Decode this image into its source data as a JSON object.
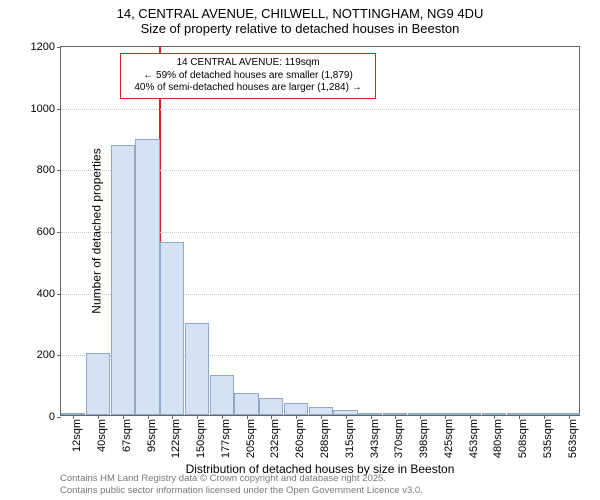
{
  "title": {
    "line1": "14, CENTRAL AVENUE, CHILWELL, NOTTINGHAM, NG9 4DU",
    "line2": "Size of property relative to detached houses in Beeston"
  },
  "chart": {
    "type": "histogram",
    "background_color": "#ffffff",
    "grid_color": "#c8c8c8",
    "axis_color": "#666666",
    "bar_fill": "#d6e2f3",
    "bar_border": "#8fa8cc",
    "ylim": [
      0,
      1200
    ],
    "yticks": [
      0,
      200,
      400,
      600,
      800,
      1000,
      1200
    ],
    "xticks": [
      "12sqm",
      "40sqm",
      "67sqm",
      "95sqm",
      "122sqm",
      "150sqm",
      "177sqm",
      "205sqm",
      "232sqm",
      "260sqm",
      "288sqm",
      "315sqm",
      "343sqm",
      "370sqm",
      "398sqm",
      "425sqm",
      "453sqm",
      "480sqm",
      "508sqm",
      "535sqm",
      "563sqm"
    ],
    "bars": [
      8,
      200,
      875,
      895,
      560,
      300,
      130,
      70,
      55,
      40,
      25,
      15,
      5,
      5,
      2,
      5,
      2,
      3,
      3,
      2,
      2
    ],
    "ylabel": "Number of detached properties",
    "xlabel": "Distribution of detached houses by size in Beeston",
    "label_fontsize": 12,
    "tick_fontsize": 11
  },
  "marker": {
    "color": "#d62021",
    "x_index_after": 4,
    "annotation": {
      "line1": "14 CENTRAL AVENUE: 119sqm",
      "line2": "← 59% of detached houses are smaller (1,879)",
      "line3": "40% of semi-detached houses are larger (1,284) →"
    }
  },
  "attribution": {
    "line1": "Contains HM Land Registry data © Crown copyright and database right 2025.",
    "line2": "Contains public sector information licensed under the Open Government Licence v3.0."
  }
}
